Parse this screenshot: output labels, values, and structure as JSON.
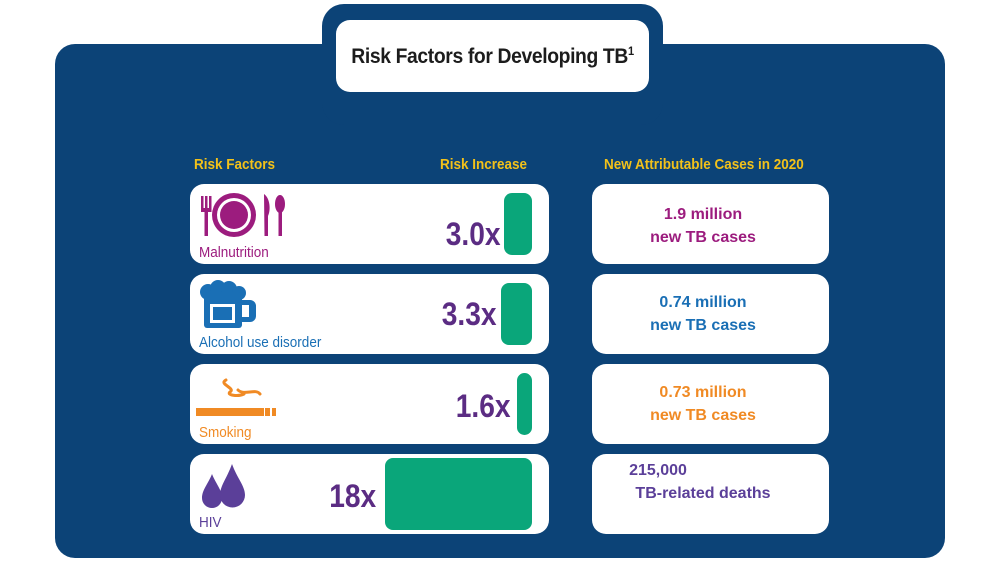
{
  "title": {
    "text": "Risk Factors for Developing TB",
    "superscript": "1"
  },
  "headers": {
    "risk_factors": "Risk Factors",
    "risk_increase": "Risk Increase",
    "cases": "New Attributable Cases in 2020"
  },
  "colors": {
    "panel": "#0c4377",
    "header": "#f2c11a",
    "bar": "#0aa67a",
    "multiplier": "#5b2c83",
    "malnutrition": "#9c1c7e",
    "alcohol": "#1a6fb5",
    "smoking": "#f08a24",
    "hiv": "#5b3f99"
  },
  "rows": [
    {
      "label": "Malnutrition",
      "multiplier": "3.0x",
      "line1": "1.9 million",
      "line2": "new TB cases",
      "icon": "plate-cutlery-icon"
    },
    {
      "label": "Alcohol use disorder",
      "multiplier": "3.3x",
      "line1": "0.74 million",
      "line2": "new TB cases",
      "icon": "beer-mug-icon"
    },
    {
      "label": "Smoking",
      "multiplier": "1.6x",
      "line1": "0.73 million",
      "line2": "new TB cases",
      "icon": "cigarette-icon"
    },
    {
      "label": "HIV",
      "multiplier": "18x",
      "line1": "215,000",
      "line2": "TB-related deaths",
      "icon": "blood-drops-icon"
    }
  ],
  "chart_data": {
    "type": "bar",
    "title": "Risk Factors for Developing TB",
    "categories": [
      "Malnutrition",
      "Alcohol use disorder",
      "Smoking",
      "HIV"
    ],
    "values": [
      3.0,
      3.3,
      1.6,
      18
    ],
    "unit": "x",
    "ylabel": "Risk Increase",
    "attributable_2020": [
      "1.9 million new TB cases",
      "0.74 million new TB cases",
      "0.73 million new TB cases",
      "215,000 TB-related deaths"
    ]
  }
}
